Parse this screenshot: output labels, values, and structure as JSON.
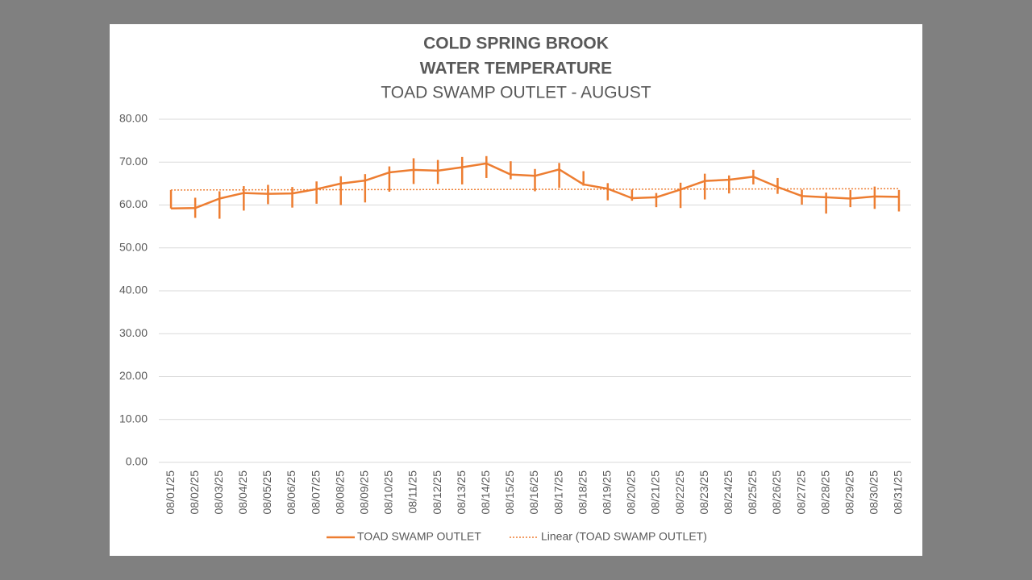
{
  "chart_data": {
    "type": "line",
    "title": "COLD SPRING BROOK",
    "subtitle": "WATER TEMPERATURE",
    "subtitle2": "TOAD SWAMP OUTLET - AUGUST",
    "categories": [
      "08/01/25",
      "08/02/25",
      "08/03/25",
      "08/04/25",
      "08/05/25",
      "08/06/25",
      "08/07/25",
      "08/08/25",
      "08/09/25",
      "08/10/25",
      "08/11/25",
      "08/12/25",
      "08/13/25",
      "08/14/25",
      "08/15/25",
      "08/16/25",
      "08/17/25",
      "08/18/25",
      "08/19/25",
      "08/20/25",
      "08/21/25",
      "08/22/25",
      "08/23/25",
      "08/24/25",
      "08/25/25",
      "08/26/25",
      "08/27/25",
      "08/28/25",
      "08/29/25",
      "08/30/25",
      "08/31/25"
    ],
    "series": [
      {
        "name": "TOAD SWAMP OUTLET",
        "color": "#ed7d31",
        "values": [
          59.2,
          59.3,
          61.5,
          62.8,
          62.6,
          62.7,
          63.7,
          65.0,
          65.7,
          67.6,
          68.2,
          68.0,
          68.8,
          69.7,
          67.1,
          66.8,
          68.3,
          64.8,
          63.8,
          61.6,
          61.8,
          63.6,
          65.6,
          65.9,
          66.6,
          64.2,
          62.1,
          61.8,
          61.5,
          62.0,
          61.9
        ],
        "high": [
          63.5,
          61.7,
          63.2,
          64.4,
          64.7,
          64.2,
          65.5,
          66.7,
          67.2,
          69.0,
          70.9,
          70.5,
          71.2,
          71.4,
          70.2,
          68.4,
          69.8,
          67.9,
          65.1,
          63.6,
          62.8,
          65.2,
          67.3,
          66.9,
          68.2,
          66.3,
          63.6,
          62.9,
          63.5,
          64.3,
          63.5
        ],
        "low": [
          59.2,
          57.0,
          56.8,
          58.7,
          60.2,
          59.4,
          60.3,
          60.0,
          60.6,
          63.1,
          64.9,
          64.9,
          64.8,
          66.3,
          66.0,
          63.2,
          64.0,
          64.5,
          61.1,
          61.0,
          59.5,
          59.3,
          61.3,
          62.7,
          64.8,
          62.6,
          60.1,
          58.0,
          59.5,
          59.1,
          58.5
        ]
      }
    ],
    "trendline": {
      "name": "Linear (TOAD SWAMP OUTLET)",
      "color": "#ed7d31",
      "start": 63.5,
      "end": 63.8
    },
    "ylim": [
      0,
      80
    ],
    "yticks": [
      {
        "value": 0,
        "label": "0.00"
      },
      {
        "value": 10,
        "label": "10.00"
      },
      {
        "value": 20,
        "label": "20.00"
      },
      {
        "value": 30,
        "label": "30.00"
      },
      {
        "value": 40,
        "label": "40.00"
      },
      {
        "value": 50,
        "label": "50.00"
      },
      {
        "value": 60,
        "label": "60.00"
      },
      {
        "value": 70,
        "label": "70.00"
      },
      {
        "value": 80,
        "label": "80.00"
      }
    ],
    "grid": true,
    "legend": "bottom"
  }
}
